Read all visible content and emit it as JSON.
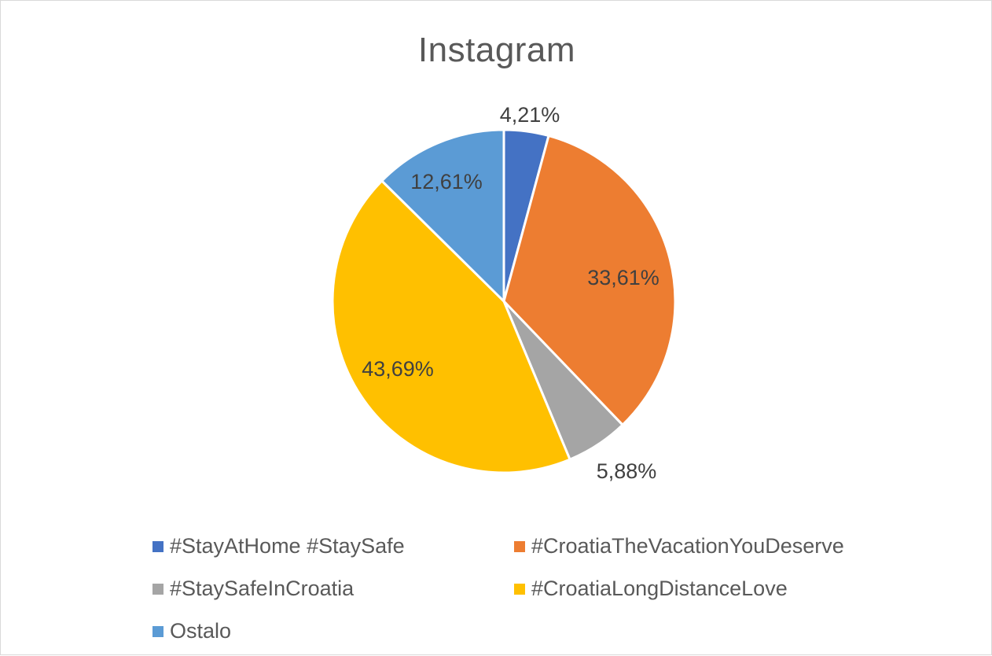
{
  "chart_data": {
    "type": "pie",
    "title": "Instagram",
    "slices": [
      {
        "label": "#StayAtHome #StaySafe",
        "value": 4.21,
        "display": "4,21%",
        "color": "#4472C4"
      },
      {
        "label": "#CroatiaTheVacationYouDeserve",
        "value": 33.61,
        "display": "33,61%",
        "color": "#ED7D31"
      },
      {
        "label": "#StaySafeInCroatia",
        "value": 5.88,
        "display": "5,88%",
        "color": "#A5A5A5"
      },
      {
        "label": "#CroatiaLongDistanceLove",
        "value": 43.69,
        "display": "43,69%",
        "color": "#FFC000"
      },
      {
        "label": "Ostalo",
        "value": 12.61,
        "display": "12,61%",
        "color": "#5B9BD5"
      }
    ],
    "legend_position": "bottom"
  }
}
